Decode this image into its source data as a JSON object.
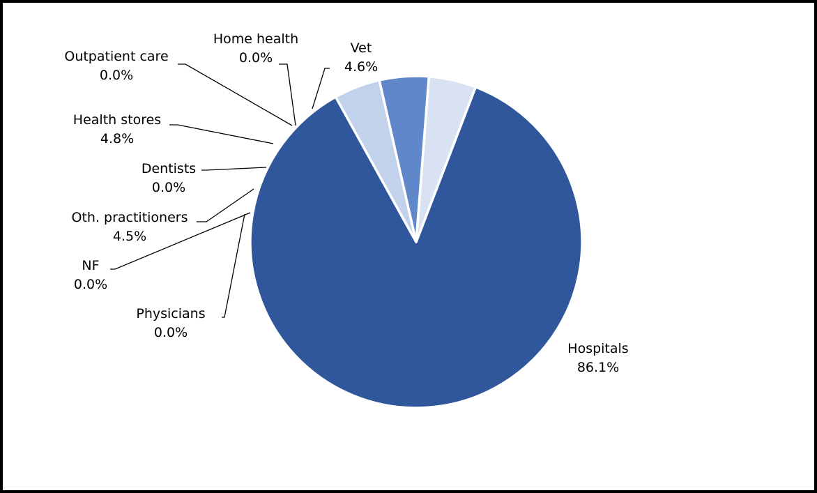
{
  "chart_data": {
    "type": "pie",
    "title": "",
    "start_angle_deg": 21,
    "direction": "clockwise",
    "slices": [
      {
        "label": "Hospitals",
        "value_text": "86.1%",
        "value": 86.1,
        "color": "#30569B"
      },
      {
        "label": "Physicians",
        "value_text": "0.0%",
        "value": 0.0,
        "color": "#30569B"
      },
      {
        "label": "NF",
        "value_text": "0.0%",
        "value": 0.0,
        "color": "#30569B"
      },
      {
        "label": "Oth. practitioners",
        "value_text": "4.5%",
        "value": 4.5,
        "color": "#C2D1EC"
      },
      {
        "label": "Dentists",
        "value_text": "0.0%",
        "value": 0.0,
        "color": "#C2D1EC"
      },
      {
        "label": "Health stores",
        "value_text": "4.8%",
        "value": 4.8,
        "color": "#5F87C9"
      },
      {
        "label": "Outpatient care",
        "value_text": "0.0%",
        "value": 0.0,
        "color": "#5F87C9"
      },
      {
        "label": "Home health",
        "value_text": "0.0%",
        "value": 0.0,
        "color": "#D9E2F3"
      },
      {
        "label": "Vet",
        "value_text": "4.6%",
        "value": 4.6,
        "color": "#D9E2F3"
      }
    ]
  }
}
